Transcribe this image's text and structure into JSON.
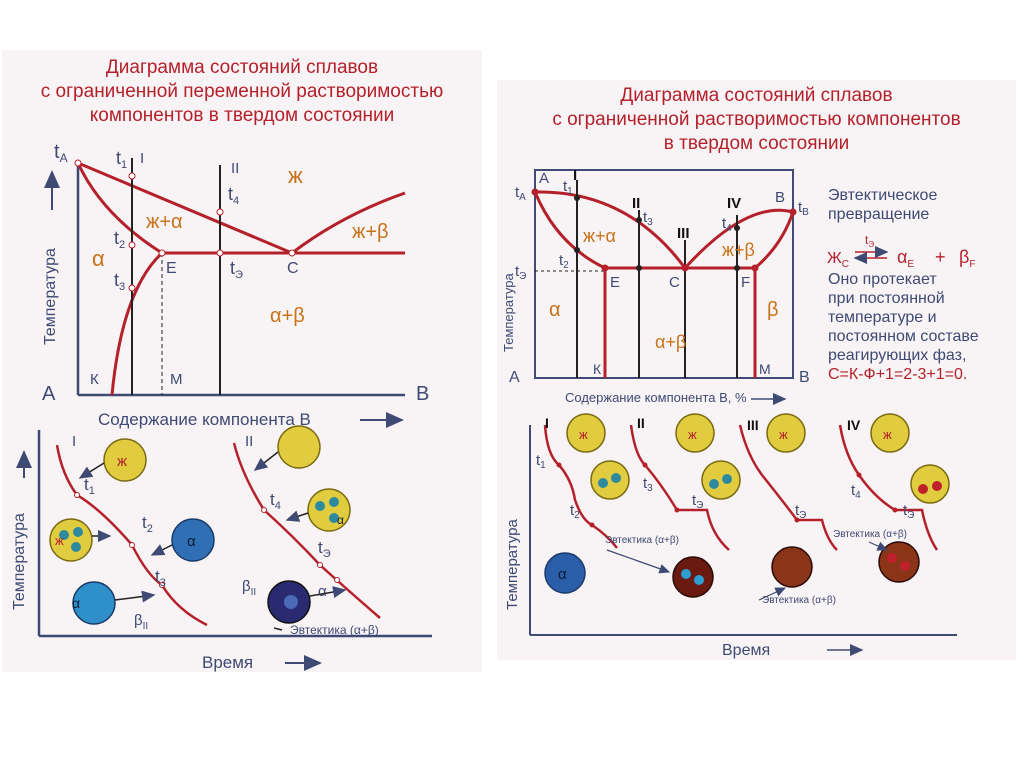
{
  "colors": {
    "curve": "#b5212b",
    "axis": "#3e4a73",
    "label": "#3e4a73",
    "phase": "#c8731a",
    "liquid": "#e1cc3f",
    "alpha": "#2f6fb4",
    "beta": "#5d2a2a",
    "eutectic": "#7a2a18"
  },
  "left": {
    "title": [
      "Диаграмма состояний сплавов",
      "с ограниченной переменной растворимостью",
      "компонентов в твердом состоянии"
    ],
    "tA": "t",
    "tA_sub": "A",
    "t1": "t",
    "t1_sub": "1",
    "roman1": "I",
    "roman2": "II",
    "t2": "t",
    "t2_sub": "2",
    "t3": "t",
    "t3_sub": "3",
    "t4": "t",
    "t4_sub": "4",
    "te": "t",
    "te_sub": "Э",
    "liquid": "ж",
    "liquid_alpha": "ж+α",
    "liquid_beta": "ж+β",
    "alpha": "α",
    "alpha_beta": "α+β",
    "pointE": "E",
    "pointC": "C",
    "pointK": "К",
    "pointM": "M",
    "pointA": "A",
    "pointB": "B",
    "ylabel": "Температура",
    "xlabel": "Содержание компонента B",
    "cool": {
      "ylabel": "Температура",
      "xlabel": "Время",
      "roman1": "I",
      "roman2": "II",
      "t1": "t",
      "t1_sub": "1",
      "t2": "t",
      "t2_sub": "2",
      "t3": "t",
      "t3_sub": "3",
      "t4": "t",
      "t4_sub": "4",
      "te": "t",
      "te_sub": "Э",
      "liquid_mark": "ж",
      "liquid_mark2": "ж",
      "alpha_mark": "α",
      "alpha_mark2": "α",
      "alpha_mark3": "α",
      "alpha_mark4": "α",
      "betaII": "β",
      "betaII_sub": "II",
      "betaII2": "β",
      "betaII2_sub": "II",
      "eutectic": "Эвтектика (α+β)"
    }
  },
  "right": {
    "title": [
      "Диаграмма состояний сплавов",
      "с ограниченной растворимостью компонентов",
      "в твердом состоянии"
    ],
    "pointA": "A",
    "pointB": "B",
    "tA": "t",
    "tA_sub": "A",
    "tB": "t",
    "tB_sub": "B",
    "t1": "t",
    "t1_sub": "1",
    "t2": "t",
    "t2_sub": "2",
    "t3": "t",
    "t3_sub": "3",
    "t4": "t",
    "t4_sub": "4",
    "te": "t",
    "te_sub": "Э",
    "roman1": "I",
    "roman2": "II",
    "roman3": "III",
    "roman4": "IV",
    "liquid_alpha": "ж+α",
    "liquid_beta": "ж+β",
    "alpha": "α",
    "beta": "β",
    "alpha_beta": "α+β",
    "pointE": "E",
    "pointC": "C",
    "pointF": "F",
    "pointK": "К",
    "pointM": "M",
    "pointA2": "A",
    "pointB2": "B",
    "ylabel": "Температура",
    "xlabel": "Содержание компонента B, %",
    "note": {
      "line1": "Эвтектическое",
      "line2": "превращение",
      "reaction_left": "Ж",
      "reaction_left_sub": "C",
      "reaction_mid": "t",
      "reaction_mid_sub": "Э",
      "reaction_a": "α",
      "reaction_a_sub": "E",
      "reaction_plus": "+",
      "reaction_b": "β",
      "reaction_b_sub": "F",
      "line3": "Оно протекает",
      "line4": "при постоянной",
      "line5": "температуре и",
      "line6": "постоянном составе",
      "line7": "реагирующих фаз,",
      "formula": "С=К-Ф+1=2-3+1=0."
    },
    "cool": {
      "ylabel": "Температура",
      "xlabel": "Время",
      "roman1": "I",
      "roman2": "II",
      "roman3": "III",
      "roman4": "IV",
      "t1": "t",
      "t1_sub": "1",
      "t2": "t",
      "t2_sub": "2",
      "t3": "t",
      "t3_sub": "3",
      "te": "t",
      "te_sub": "Э",
      "te2": "t",
      "te2_sub": "Э",
      "t4": "t",
      "t4_sub": "4",
      "te3": "t",
      "te3_sub": "Э",
      "liq1": "ж",
      "liq2": "ж",
      "liq3": "ж",
      "liq4": "ж",
      "alpha_mark": "α",
      "eut1": "Эвтектика (α+β)",
      "eut2": "Эвтектика (α+β)",
      "eut3": "Эвтектика (α+β)"
    }
  }
}
